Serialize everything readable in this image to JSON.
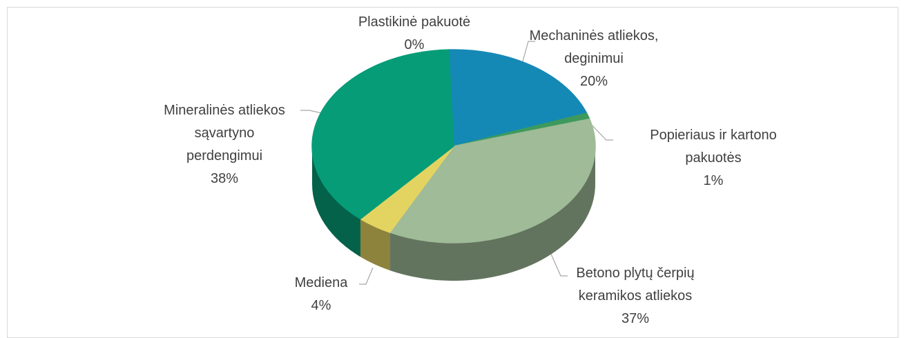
{
  "chart_data": {
    "type": "pie",
    "pie_style": "3d",
    "categories": [
      "Plastikinė pakuotė",
      "Mechaninės atliekos,\ndeginimui",
      "Popieriaus ir kartono\npakuotės",
      "Betono plytų čerpių\nkeramikos atliekos",
      "Mediena",
      "Mineralinės atliekos\nsąvartyno\nperdengimui"
    ],
    "values": [
      0,
      20,
      1,
      37,
      4,
      38
    ],
    "value_labels": [
      "0%",
      "20%",
      "1%",
      "37%",
      "4%",
      "38%"
    ],
    "colors": [
      "#5bb8d8",
      "#1589b5",
      "#3d9a5c",
      "#9fbb98",
      "#e3d462",
      "#069c78"
    ]
  }
}
